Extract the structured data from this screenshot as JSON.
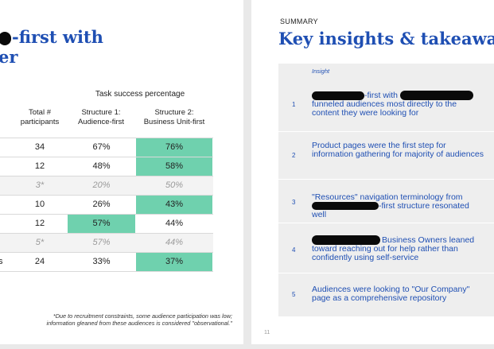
{
  "left_slide": {
    "title_line1": "-first with",
    "title_line2": "er",
    "table": {
      "super_header": "Task success percentage",
      "headers": {
        "participants": "Total #\nparticipants",
        "structure1": "Structure 1:\nAudience-first",
        "structure2": "Structure 2:\nBusiness Unit-first"
      },
      "rows": [
        {
          "label": "",
          "participants": "34",
          "s1": "67%",
          "s2": "76%"
        },
        {
          "label": "",
          "participants": "12",
          "s1": "48%",
          "s2": "58%"
        },
        {
          "label": "",
          "participants": "3*",
          "s1": "20%",
          "s2": "50%"
        },
        {
          "label": "",
          "participants": "10",
          "s1": "26%",
          "s2": "43%"
        },
        {
          "label": "",
          "participants": "12",
          "s1": "57%",
          "s2": "44%"
        },
        {
          "label": "",
          "participants": "5*",
          "s1": "57%",
          "s2": "44%"
        },
        {
          "label": "s",
          "participants": "24",
          "s1": "33%",
          "s2": "37%"
        }
      ]
    },
    "footnote": "*Due to recruitment constraints, some audience participation was low; information gleaned from these audiences is considered \"observational.\""
  },
  "right_slide": {
    "eyebrow": "SUMMARY",
    "title": "Key insights & takeaway",
    "column_header": "Insight",
    "insights": [
      {
        "num": "1",
        "line1_suffix": "-first with",
        "rest": "funneled audiences most directly to the content they were looking for"
      },
      {
        "num": "2",
        "text": "Product pages were the first step for information gathering for majority of audiences"
      },
      {
        "num": "3",
        "line1": "\"Resources\" navigation terminology from",
        "line2_suffix": "-first structure resonated well"
      },
      {
        "num": "4",
        "line1_suffix": "Business Owners leaned",
        "rest": "toward reaching out for help rather than confidently using self-service"
      },
      {
        "num": "5",
        "text": "Audiences were looking to \"Our Company\" page as a comprehensive repository"
      }
    ],
    "page_number": "11"
  },
  "colors": {
    "title_blue": "#1f4fb3",
    "highlight_green": "#6fd1ae",
    "redaction": "#0a0a0a"
  }
}
